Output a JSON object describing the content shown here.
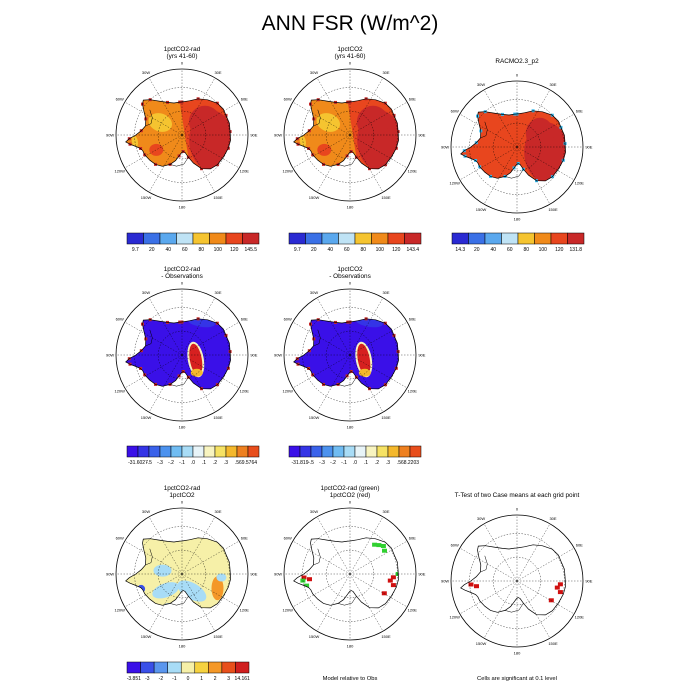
{
  "title": "ANN FSR (W/m^2)",
  "colors": {
    "abs": [
      "#2a2ad2",
      "#3a70e6",
      "#5aa8ee",
      "#bfe3f5",
      "#f5c430",
      "#f08a1a",
      "#e8461e",
      "#c82828"
    ],
    "diff": [
      "#3a10e8",
      "#3434e6",
      "#3a62ea",
      "#4c92ee",
      "#70bcf2",
      "#a8dcf6",
      "#e8f4f8",
      "#f8f4c0",
      "#f6e264",
      "#f4b82c",
      "#ee8020",
      "#e84e1c",
      "#d62020"
    ],
    "signif": [
      "#3a10e8",
      "#3a50e8",
      "#5a96ee",
      "#a8dcf6",
      "#f6f0a8",
      "#f6d240",
      "#f49828",
      "#e8501c",
      "#d01f1f"
    ],
    "green": "#30d030",
    "red": "#d01010"
  },
  "lon_labels": [
    "0",
    "30E",
    "60E",
    "90E",
    "120E",
    "150E",
    "180",
    "150W",
    "120W",
    "90W",
    "60W",
    "30W"
  ],
  "panels": [
    {
      "id": "p1",
      "title_lines": [
        "1pctCO2-rad",
        "(yrs 41-60)"
      ],
      "mode": "abs",
      "labelbar": {
        "labels": [
          "9.7",
          "20",
          "40",
          "60",
          "80",
          "100",
          "120",
          "145.5"
        ]
      }
    },
    {
      "id": "p2",
      "title_lines": [
        "1pctCO2",
        "(yrs 41-60)"
      ],
      "mode": "abs",
      "labelbar": {
        "labels": [
          "9.7",
          "20",
          "40",
          "60",
          "80",
          "100",
          "120",
          "143.4"
        ]
      }
    },
    {
      "id": "p3",
      "title_lines": [
        "RACMO2.3_p2"
      ],
      "mode": "obs",
      "labelbar": {
        "labels": [
          "14.3",
          "20",
          "40",
          "60",
          "80",
          "100",
          "120",
          "131.8"
        ]
      }
    },
    {
      "id": "p4",
      "title_lines": [
        "1pctCO2-rad",
        "- Observations"
      ],
      "mode": "diff",
      "labelbar": {
        "labels": [
          "-31.6027",
          "-.5",
          "-.3",
          "-.2",
          "-.1",
          ".0",
          ".1",
          ".2",
          ".3",
          ".5",
          "69.5764"
        ]
      }
    },
    {
      "id": "p5",
      "title_lines": [
        "1pctCO2",
        "- Observations"
      ],
      "mode": "diff",
      "labelbar": {
        "labels": [
          "-31.819",
          "-.5",
          "-.3",
          "-.2",
          "-.1",
          ".0",
          ".1",
          ".2",
          ".3",
          ".5",
          "68.2203"
        ]
      }
    },
    {
      "id": "p7",
      "title_lines": [
        "1pctCO2-rad",
        "1pctCO2"
      ],
      "mode": "mdiff",
      "labelbar": {
        "labels": [
          "-3.851",
          "-3",
          "-2",
          "-1",
          "0",
          "1",
          "2",
          "3",
          "14.161"
        ]
      }
    },
    {
      "id": "p8",
      "title_lines": [
        "1pctCO2-rad (green)",
        "1pctCO2 (red)"
      ],
      "mode": "sig2",
      "note": "Model relative to Obs"
    },
    {
      "id": "p9",
      "title_lines": [
        "T-Test of two Case means at each grid point"
      ],
      "mode": "sig1",
      "note": "Cells are significant at 0.1 level"
    }
  ],
  "chart_data": [
    {
      "type": "heatmap",
      "title": "1pctCO2-rad (yrs 41-60)",
      "projection": "south polar stereographic",
      "colorbar": {
        "min": 9.7,
        "max": 145.5,
        "levels": [
          20,
          40,
          60,
          80,
          100,
          120
        ]
      }
    },
    {
      "type": "heatmap",
      "title": "1pctCO2 (yrs 41-60)",
      "projection": "south polar stereographic",
      "colorbar": {
        "min": 9.7,
        "max": 143.4,
        "levels": [
          20,
          40,
          60,
          80,
          100,
          120
        ]
      }
    },
    {
      "type": "heatmap",
      "title": "RACMO2.3_p2",
      "projection": "south polar stereographic",
      "colorbar": {
        "min": 14.3,
        "max": 131.8,
        "levels": [
          20,
          40,
          60,
          80,
          100,
          120
        ]
      }
    },
    {
      "type": "heatmap",
      "title": "1pctCO2-rad - Observations",
      "projection": "south polar stereographic",
      "colorbar": {
        "min": -31.6027,
        "max": 69.5764,
        "levels": [
          -0.5,
          -0.3,
          -0.2,
          -0.1,
          0,
          0.1,
          0.2,
          0.3,
          0.5
        ]
      }
    },
    {
      "type": "heatmap",
      "title": "1pctCO2 - Observations",
      "projection": "south polar stereographic",
      "colorbar": {
        "min": -31.819,
        "max": 68.2203,
        "levels": [
          -0.5,
          -0.3,
          -0.2,
          -0.1,
          0,
          0.1,
          0.2,
          0.3,
          0.5
        ]
      }
    },
    {
      "type": "heatmap",
      "title": "1pctCO2-rad 1pctCO2",
      "projection": "south polar stereographic",
      "colorbar": {
        "min": -3.851,
        "max": 14.161,
        "levels": [
          -3,
          -2,
          -1,
          0,
          1,
          2,
          3
        ]
      }
    },
    {
      "type": "heatmap",
      "title": "1pctCO2-rad (green) 1pctCO2 (red)",
      "projection": "south polar stereographic",
      "note": "Model relative to Obs"
    },
    {
      "type": "heatmap",
      "title": "T-Test of two Case means at each grid point",
      "projection": "south polar stereographic",
      "note": "Cells are significant at 0.1 level"
    }
  ]
}
